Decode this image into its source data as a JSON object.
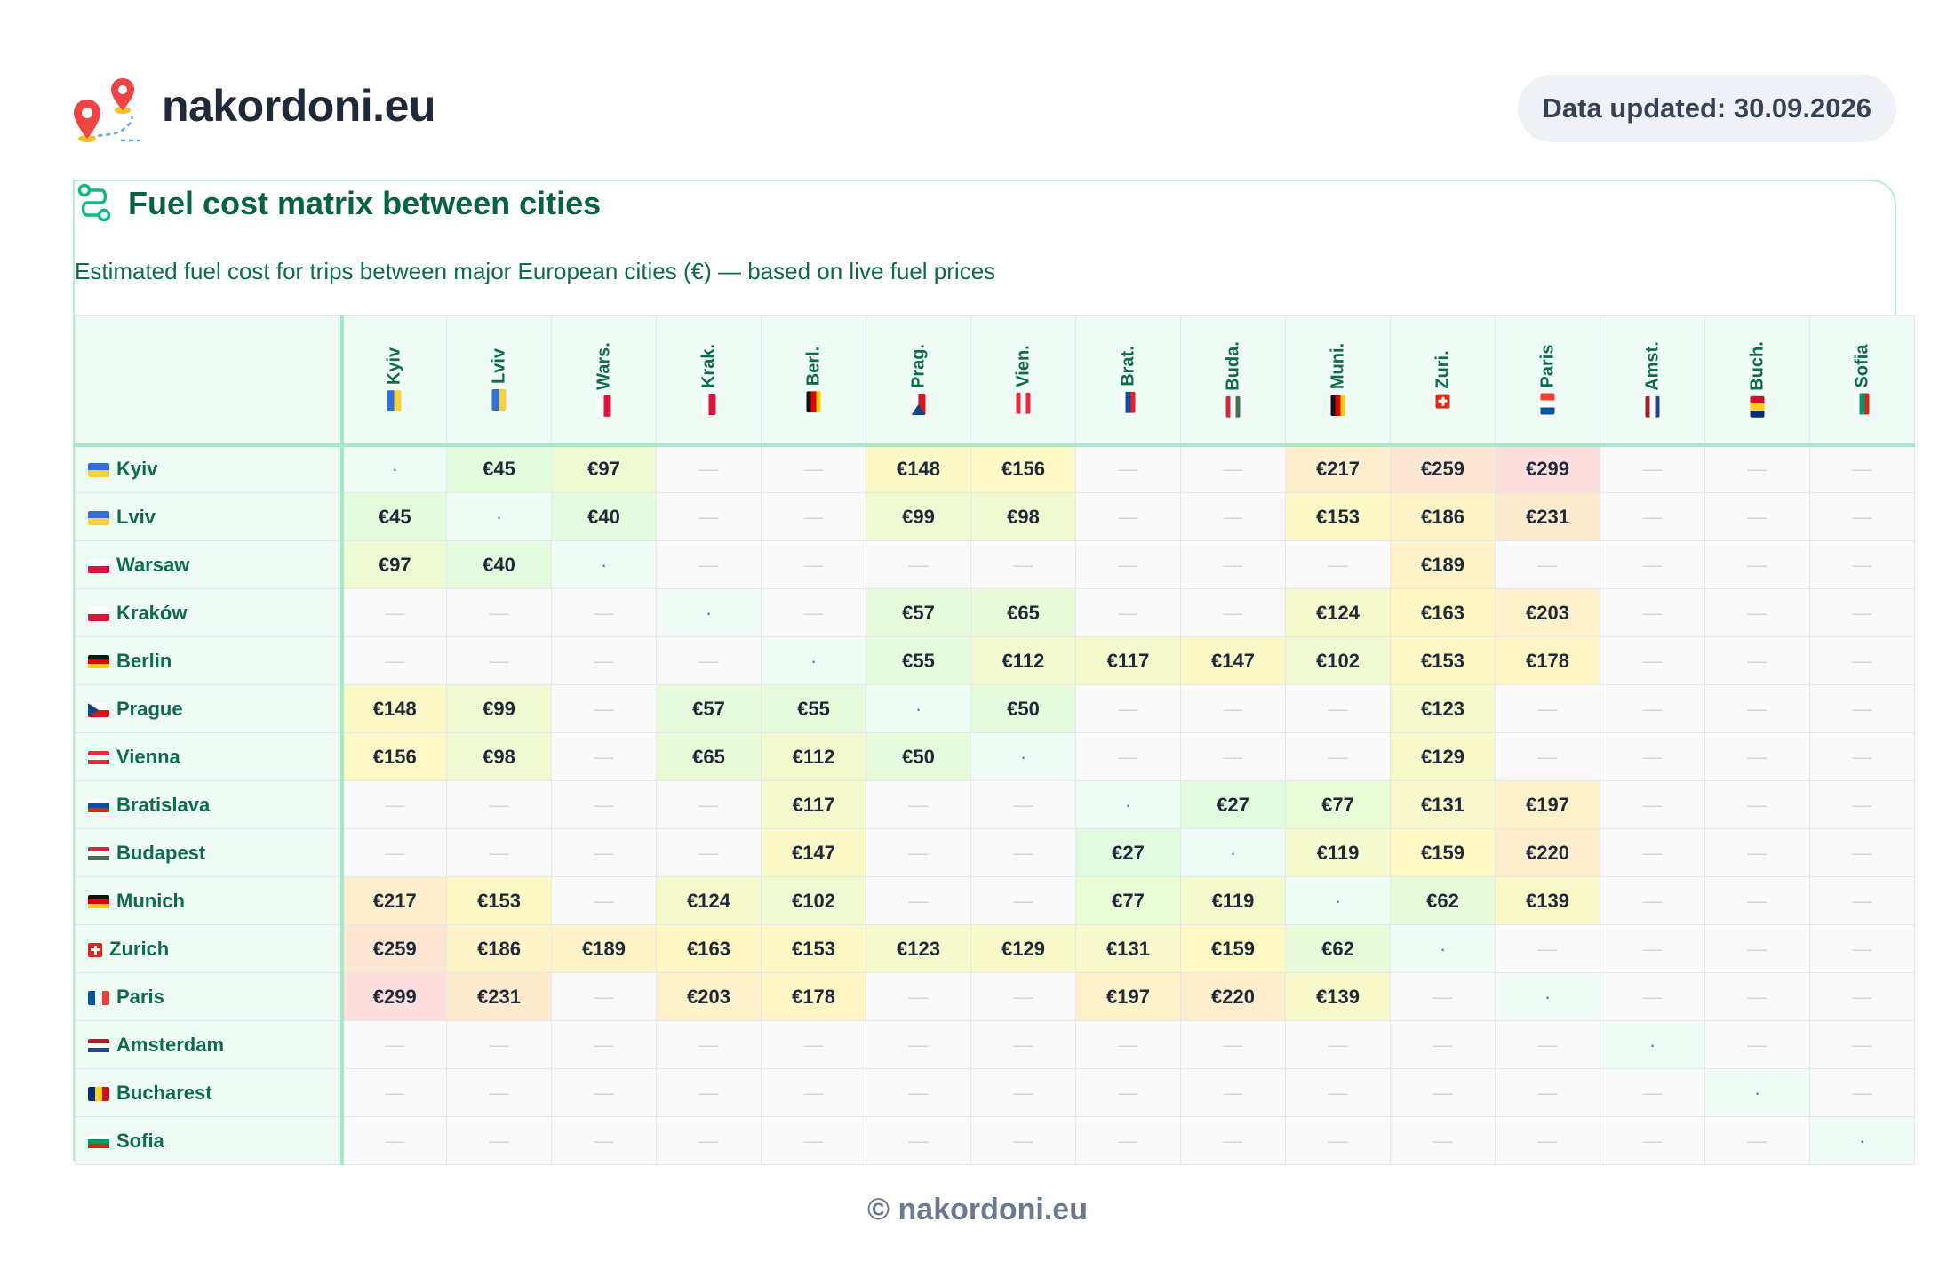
{
  "brand": "nakordoni.eu",
  "updated": "Data updated: 30.09.2026",
  "title": "Fuel cost matrix between cities",
  "subtitle": "Estimated fuel cost for trips between major European cities (€) — based on live fuel prices",
  "footer": "© nakordoni.eu",
  "empty_symbol": "—",
  "self_symbol": "·",
  "icons": {
    "logo": "map-pin-route-icon",
    "title": "route-icon"
  },
  "colors": {
    "accent": "#066245",
    "border": "#a7e8c8",
    "header_bg": "#effcf5"
  },
  "cities": [
    {
      "name": "Kyiv",
      "short": "Kyiv",
      "flag": "UA"
    },
    {
      "name": "Lviv",
      "short": "Lviv",
      "flag": "UA"
    },
    {
      "name": "Warsaw",
      "short": "Wars.",
      "flag": "PL"
    },
    {
      "name": "Kraków",
      "short": "Krak.",
      "flag": "PL"
    },
    {
      "name": "Berlin",
      "short": "Berl.",
      "flag": "DE"
    },
    {
      "name": "Prague",
      "short": "Prag.",
      "flag": "CZ"
    },
    {
      "name": "Vienna",
      "short": "Vien.",
      "flag": "AT"
    },
    {
      "name": "Bratislava",
      "short": "Brat.",
      "flag": "SK"
    },
    {
      "name": "Budapest",
      "short": "Buda.",
      "flag": "HU"
    },
    {
      "name": "Munich",
      "short": "Muni.",
      "flag": "DE"
    },
    {
      "name": "Zurich",
      "short": "Zuri.",
      "flag": "CH"
    },
    {
      "name": "Paris",
      "short": "Paris",
      "flag": "FR"
    },
    {
      "name": "Amsterdam",
      "short": "Amst.",
      "flag": "NL"
    },
    {
      "name": "Bucharest",
      "short": "Buch.",
      "flag": "RO"
    },
    {
      "name": "Sofia",
      "short": "Sofia",
      "flag": "BG"
    }
  ],
  "matrix": [
    [
      null,
      45,
      97,
      null,
      null,
      148,
      156,
      null,
      null,
      217,
      259,
      299,
      null,
      null,
      null
    ],
    [
      45,
      null,
      40,
      null,
      null,
      99,
      98,
      null,
      null,
      153,
      186,
      231,
      null,
      null,
      null
    ],
    [
      97,
      40,
      null,
      null,
      null,
      null,
      null,
      null,
      null,
      null,
      189,
      null,
      null,
      null,
      null
    ],
    [
      null,
      null,
      null,
      null,
      null,
      57,
      65,
      null,
      null,
      124,
      163,
      203,
      null,
      null,
      null
    ],
    [
      null,
      null,
      null,
      null,
      null,
      55,
      112,
      117,
      147,
      102,
      153,
      178,
      null,
      null,
      null
    ],
    [
      148,
      99,
      null,
      57,
      55,
      null,
      50,
      null,
      null,
      null,
      123,
      null,
      null,
      null,
      null
    ],
    [
      156,
      98,
      null,
      65,
      112,
      50,
      null,
      null,
      null,
      null,
      129,
      null,
      null,
      null,
      null
    ],
    [
      null,
      null,
      null,
      null,
      117,
      null,
      null,
      null,
      27,
      77,
      131,
      197,
      null,
      null,
      null
    ],
    [
      null,
      null,
      null,
      null,
      147,
      null,
      null,
      27,
      null,
      119,
      159,
      220,
      null,
      null,
      null
    ],
    [
      217,
      153,
      null,
      124,
      102,
      null,
      null,
      77,
      119,
      null,
      62,
      139,
      null,
      null,
      null
    ],
    [
      259,
      186,
      189,
      163,
      153,
      123,
      129,
      131,
      159,
      62,
      null,
      null,
      null,
      null,
      null
    ],
    [
      299,
      231,
      null,
      203,
      178,
      null,
      null,
      197,
      220,
      139,
      null,
      null,
      null,
      null,
      null
    ],
    [
      null,
      null,
      null,
      null,
      null,
      null,
      null,
      null,
      null,
      null,
      null,
      null,
      null,
      null,
      null
    ],
    [
      null,
      null,
      null,
      null,
      null,
      null,
      null,
      null,
      null,
      null,
      null,
      null,
      null,
      null,
      null
    ],
    [
      null,
      null,
      null,
      null,
      null,
      null,
      null,
      null,
      null,
      null,
      null,
      null,
      null,
      null,
      null
    ]
  ]
}
